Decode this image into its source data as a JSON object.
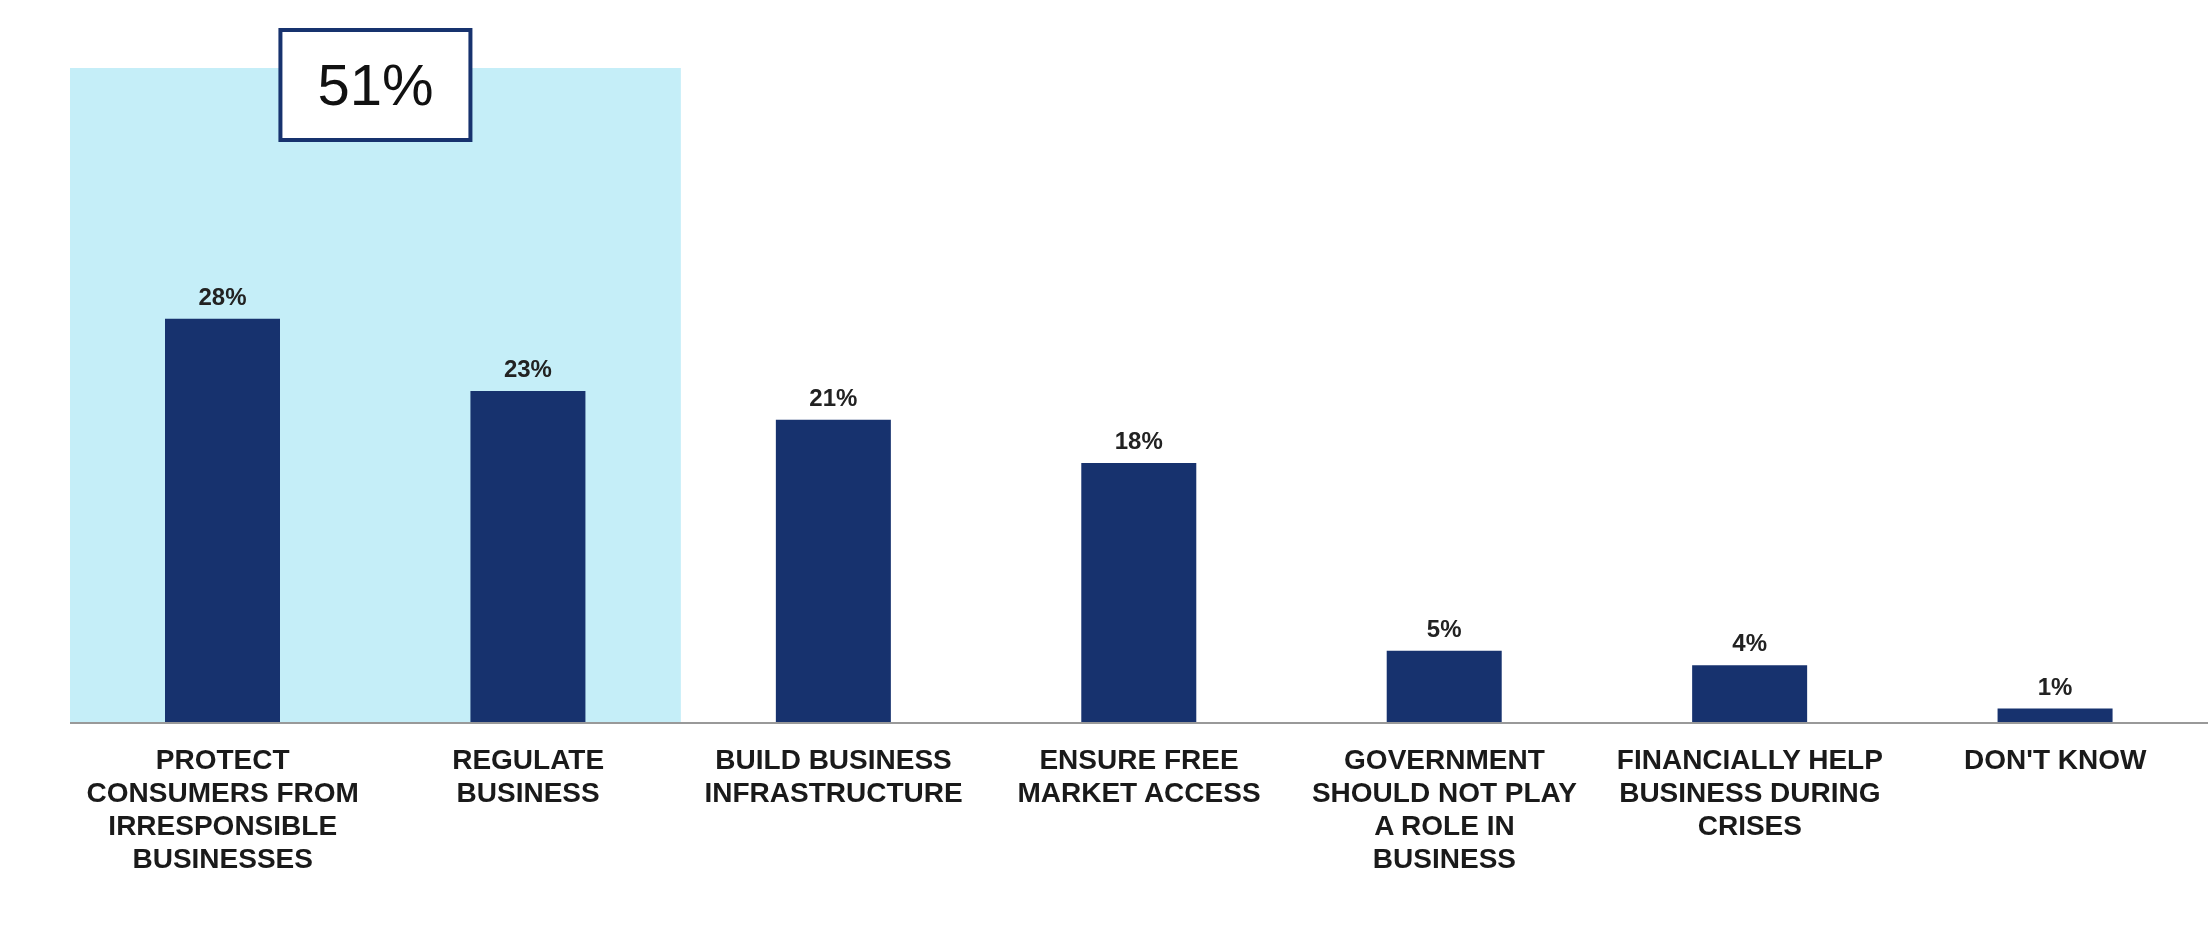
{
  "chart_data": {
    "type": "bar",
    "categories": [
      "PROTECT CONSUMERS FROM IRRESPONSIBLE BUSINESSES",
      "REGULATE BUSINESS",
      "BUILD BUSINESS INFRASTRUCTURE",
      "ENSURE FREE MARKET ACCESS",
      "GOVERNMENT SHOULD NOT PLAY A ROLE IN BUSINESS",
      "FINANCIALLY HELP BUSINESS DURING CRISES",
      "DON'T KNOW"
    ],
    "values": [
      28,
      23,
      21,
      18,
      5,
      4,
      1
    ],
    "value_labels": [
      "28%",
      "23%",
      "21%",
      "18%",
      "5%",
      "4%",
      "1%"
    ],
    "color": "#17326e",
    "bands": [
      {
        "axis": "x",
        "from": "PROTECT CONSUMERS FROM IRRESPONSIBLE BUSINESSES",
        "to": "REGULATE BUSINESS",
        "label": "51%",
        "color": "#c5eef8"
      }
    ]
  }
}
